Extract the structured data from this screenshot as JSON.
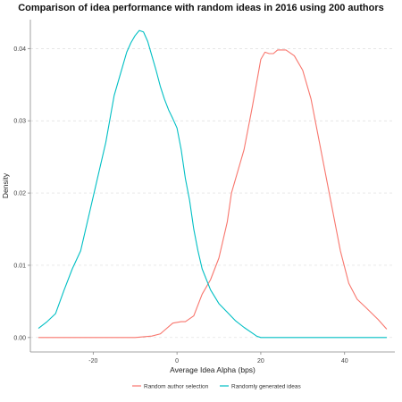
{
  "chart_data": {
    "type": "line",
    "title": "Comparison of idea performance with random ideas in 2016 using 200 authors",
    "xlabel": "Average Idea Alpha (bps)",
    "ylabel": "Density",
    "xlim": [
      -35,
      52
    ],
    "ylim": [
      -0.002,
      0.044
    ],
    "xticks": [
      -20,
      0,
      20,
      40
    ],
    "yticks": [
      0.0,
      0.01,
      0.02,
      0.03,
      0.04
    ],
    "xtick_labels": [
      "-20",
      "0",
      "20",
      "40"
    ],
    "ytick_labels": [
      "0.00",
      "0.01",
      "0.02",
      "0.03",
      "0.04"
    ],
    "grid": "horizontal-dashed",
    "legend_position": "bottom",
    "series": [
      {
        "name": "Random author selection",
        "color": "#f8766d",
        "x": [
          -33,
          -20,
          -10,
          -6,
          -4,
          -3,
          -1,
          1,
          2,
          4,
          6,
          8,
          10,
          12,
          13,
          15,
          16,
          18,
          20,
          21,
          22,
          23,
          24,
          26,
          28,
          30,
          32,
          33,
          35,
          37,
          39,
          41,
          43,
          45,
          48,
          50
        ],
        "y": [
          0.0,
          0.0,
          0.0,
          0.0002,
          0.0005,
          0.001,
          0.002,
          0.0022,
          0.0022,
          0.003,
          0.006,
          0.008,
          0.011,
          0.016,
          0.02,
          0.024,
          0.026,
          0.032,
          0.0385,
          0.0395,
          0.0393,
          0.0393,
          0.0398,
          0.0398,
          0.039,
          0.037,
          0.033,
          0.03,
          0.024,
          0.018,
          0.012,
          0.0075,
          0.0053,
          0.0042,
          0.0025,
          0.0012
        ]
      },
      {
        "name": "Randomly generated ideas",
        "color": "#00bfc4",
        "x": [
          -33,
          -31,
          -29,
          -27,
          -25,
          -23,
          -21,
          -19,
          -17,
          -15,
          -13,
          -12,
          -11,
          -10,
          -9,
          -8,
          -7,
          -6,
          -5,
          -4,
          -3,
          -2,
          -1,
          0,
          1,
          2,
          3,
          4,
          5,
          6,
          8,
          10,
          12,
          14,
          16,
          18,
          19,
          20,
          22,
          25,
          30,
          35,
          40,
          45,
          50
        ],
        "y": [
          0.0013,
          0.0022,
          0.0033,
          0.0065,
          0.0095,
          0.012,
          0.017,
          0.022,
          0.027,
          0.0335,
          0.0375,
          0.0395,
          0.0408,
          0.0418,
          0.0425,
          0.0423,
          0.041,
          0.039,
          0.037,
          0.0348,
          0.033,
          0.0315,
          0.0303,
          0.029,
          0.026,
          0.022,
          0.019,
          0.015,
          0.012,
          0.0095,
          0.0066,
          0.0047,
          0.0035,
          0.0023,
          0.0014,
          0.0006,
          0.0002,
          0.0,
          0.0,
          0.0,
          0.0,
          0.0,
          0.0,
          0.0,
          0.0
        ]
      }
    ]
  }
}
